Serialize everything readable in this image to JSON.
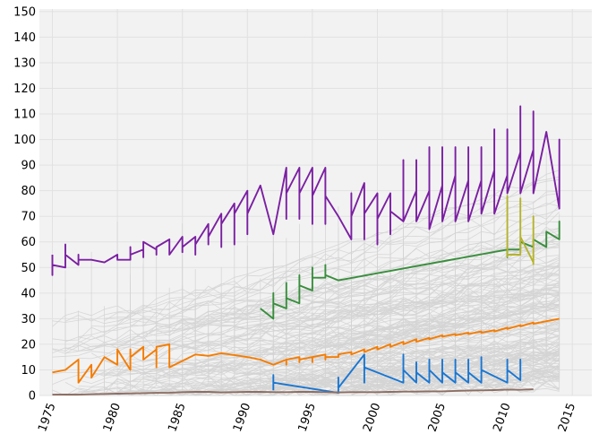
{
  "colors": {
    "plot_background": "#f2f2f2",
    "grid": "#e1e1e1",
    "background_lines": "#d4d4d4",
    "axis_text": "#000000"
  },
  "chart_data": {
    "type": "line",
    "title": "",
    "xlabel": "",
    "ylabel": "",
    "xlim": [
      1974,
      2016.5
    ],
    "ylim": [
      0,
      151
    ],
    "grid": true,
    "legend": "none",
    "x_ticks": [
      1975,
      1980,
      1985,
      1990,
      1995,
      2000,
      2005,
      2010,
      2015
    ],
    "x_tick_labels": [
      "1975",
      "1980",
      "1985",
      "1990",
      "1995",
      "2000",
      "2005",
      "2010",
      "2015"
    ],
    "y_ticks": [
      0,
      10,
      20,
      30,
      40,
      50,
      60,
      70,
      80,
      90,
      100,
      110,
      120,
      130,
      140,
      150
    ],
    "y_tick_labels": [
      "0",
      "10",
      "20",
      "30",
      "40",
      "50",
      "60",
      "70",
      "80",
      "90",
      "100",
      "110",
      "120",
      "130",
      "140",
      "150"
    ],
    "background_series_count": 180,
    "series": [
      {
        "color": "#7b1fa2",
        "x": [
          1975,
          1975,
          1975,
          1976,
          1976,
          1976,
          1977,
          1977,
          1977,
          1978,
          1979,
          1980,
          1980,
          1981,
          1981,
          1981,
          1982,
          1982,
          1982,
          1983,
          1983,
          1983,
          1984,
          1984,
          1984,
          1985,
          1985,
          1985,
          1986,
          1986,
          1986,
          1987,
          1987,
          1987,
          1988,
          1988,
          1988,
          1989,
          1989,
          1989,
          1990,
          1990,
          1990,
          1991,
          1992,
          1993,
          1993,
          1993,
          1994,
          1994,
          1994,
          1995,
          1995,
          1995,
          1996,
          1996,
          1996,
          1997,
          1998,
          1998,
          1998,
          1999,
          1999,
          1999,
          2000,
          2000,
          2000,
          2001,
          2001,
          2001,
          2002,
          2002,
          2002,
          2003,
          2003,
          2003,
          2004,
          2004,
          2004,
          2005,
          2005,
          2005,
          2006,
          2006,
          2006,
          2007,
          2007,
          2007,
          2008,
          2008,
          2008,
          2009,
          2009,
          2009,
          2010,
          2010,
          2010,
          2011,
          2011,
          2011,
          2012,
          2012,
          2012,
          2013,
          2014,
          2014,
          2014
        ],
        "values": [
          55,
          47,
          51,
          50,
          59,
          55,
          51,
          55,
          53,
          53,
          52,
          55,
          53,
          53,
          58,
          55,
          57,
          54,
          60,
          57,
          55,
          58,
          61,
          57,
          55,
          62,
          56,
          58,
          62,
          55,
          59,
          67,
          59,
          62,
          71,
          58,
          67,
          75,
          59,
          71,
          80,
          63,
          71,
          82,
          63,
          89,
          69,
          79,
          89,
          69,
          79,
          89,
          67,
          78,
          89,
          67,
          78,
          70,
          61,
          79,
          70,
          83,
          61,
          71,
          79,
          59,
          69,
          79,
          63,
          72,
          68,
          92,
          68,
          80,
          92,
          68,
          80,
          97,
          65,
          82,
          97,
          68,
          86,
          97,
          68,
          84,
          97,
          68,
          84,
          97,
          71,
          88,
          104,
          71,
          86,
          104,
          79,
          95,
          113,
          79,
          96,
          111,
          79,
          103,
          73,
          100,
          73
        ]
      },
      {
        "color": "#388e3c",
        "x": [
          1991,
          1992,
          1992,
          1992,
          1993,
          1993,
          1993,
          1994,
          1994,
          1994,
          1995,
          1995,
          1995,
          1996,
          1996,
          1996,
          1997,
          2010,
          2010,
          2010,
          2011,
          2011,
          2012,
          2012,
          2013,
          2013,
          2013,
          2014,
          2014,
          2014
        ],
        "values": [
          34,
          30,
          40,
          36,
          34,
          44,
          38,
          36,
          47,
          43,
          41,
          50,
          46,
          46,
          51,
          47,
          45,
          57,
          54,
          57,
          57,
          60,
          58,
          61,
          58,
          60,
          64,
          61,
          68,
          65
        ]
      },
      {
        "color": "#b5b32c",
        "x": [
          2010,
          2010,
          2010,
          2011,
          2011,
          2011,
          2012,
          2012,
          2012
        ],
        "values": [
          54,
          78,
          55,
          55,
          77,
          62,
          52,
          70,
          51
        ]
      },
      {
        "color": "#f57c00",
        "x": [
          1975,
          1976,
          1977,
          1977,
          1978,
          1978,
          1979,
          1980,
          1980,
          1981,
          1981,
          1981,
          1982,
          1982,
          1983,
          1983,
          1983,
          1984,
          1984,
          1986,
          1987,
          1988,
          1989,
          1990,
          1991,
          1992,
          1993,
          1993,
          1993,
          1994,
          1994,
          1994,
          1995,
          1995,
          1995,
          1996,
          1996,
          1996,
          1997,
          1997,
          1998,
          1998,
          1999,
          1999,
          2000,
          2000,
          2001,
          2001,
          2002,
          2002,
          2003,
          2003,
          2004,
          2004,
          2005,
          2005,
          2006,
          2006,
          2007,
          2007,
          2008,
          2008,
          2009,
          2009,
          2010,
          2010,
          2011,
          2011,
          2012,
          2012,
          2013,
          2014
        ],
        "values": [
          9,
          10,
          14,
          5,
          12,
          7,
          15,
          12,
          18,
          10,
          18,
          15,
          19,
          14,
          18,
          11,
          19,
          20,
          11,
          16,
          15.5,
          16.5,
          15.8,
          15,
          14,
          12,
          14,
          12,
          14,
          15,
          13,
          14,
          15,
          13,
          15,
          16,
          14,
          15,
          15,
          16,
          17,
          16,
          18,
          17,
          19,
          18,
          20,
          19,
          21,
          20,
          22,
          21,
          22.5,
          22,
          23.5,
          23,
          24,
          23.5,
          24.5,
          24,
          25,
          24.5,
          25.5,
          25,
          26.5,
          26,
          27.5,
          27,
          28.5,
          28,
          29,
          30
        ]
      },
      {
        "color": "#1976d2",
        "x": [
          1992,
          1992,
          1992,
          1997,
          1997,
          1997,
          1999,
          1999,
          1999,
          2002,
          2002,
          2002,
          2003,
          2003,
          2003,
          2004,
          2004,
          2004,
          2005,
          2005,
          2005,
          2006,
          2006,
          2006,
          2007,
          2007,
          2007,
          2008,
          2008,
          2008,
          2010,
          2010,
          2010,
          2011,
          2011,
          2011
        ],
        "values": [
          2,
          8,
          5,
          1,
          7,
          3,
          16,
          5,
          11,
          5,
          16,
          10,
          5,
          13,
          9,
          5,
          14,
          10,
          5,
          14,
          9,
          5,
          14,
          9,
          5,
          14,
          9,
          5,
          15,
          10,
          5,
          14,
          10,
          6,
          14,
          10
        ]
      },
      {
        "color": "#8d6e63",
        "x": [
          1975,
          1976,
          1977,
          1978,
          1979,
          1980,
          1981,
          1982,
          1983,
          1984,
          1985,
          1986,
          1987,
          1988,
          1989,
          1990,
          1991,
          1992,
          1993,
          1994,
          1995,
          1996,
          1997,
          1998,
          1999,
          2000,
          2001,
          2002,
          2003,
          2004,
          2005,
          2006,
          2007,
          2008,
          2009,
          2010,
          2011,
          2012
        ],
        "values": [
          0.3,
          0.4,
          0.3,
          0.5,
          0.6,
          0.7,
          0.8,
          0.9,
          1.0,
          1.1,
          1.3,
          1.4,
          1.4,
          1.2,
          1.3,
          1.4,
          1.4,
          1.3,
          1.3,
          1.4,
          1.4,
          1.3,
          1.2,
          1.3,
          1.3,
          1.3,
          1.4,
          1.5,
          1.5,
          1.6,
          1.6,
          1.8,
          1.9,
          2.0,
          2.1,
          2.3,
          2.2,
          2.4
        ]
      }
    ]
  }
}
